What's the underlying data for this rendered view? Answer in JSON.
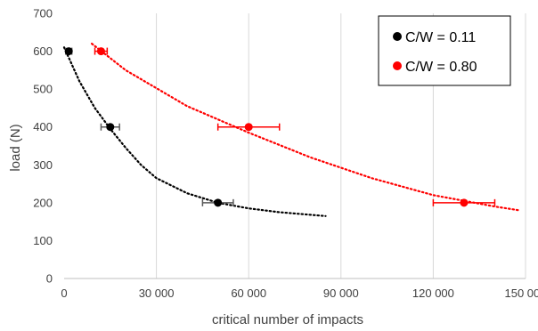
{
  "chart_data": {
    "type": "scatter",
    "title": "",
    "xlabel": "critical number of impacts",
    "ylabel": "load (N)",
    "xlim": [
      0,
      150000
    ],
    "ylim": [
      0,
      700
    ],
    "x_ticks": [
      0,
      30000,
      60000,
      90000,
      120000,
      150000
    ],
    "x_tick_labels": [
      "0",
      "30 000",
      "60 000",
      "90 000",
      "120 000",
      "150 000"
    ],
    "y_ticks": [
      0,
      100,
      200,
      300,
      400,
      500,
      600,
      700
    ],
    "y_tick_labels": [
      "0",
      "100",
      "200",
      "300",
      "400",
      "500",
      "600",
      "700"
    ],
    "grid": "vertical",
    "legend_position": "top-right",
    "series": [
      {
        "name": "C/W = 0.11",
        "color": "#000000",
        "points": [
          {
            "x": 1500,
            "y": 600,
            "xerr": 1000
          },
          {
            "x": 15000,
            "y": 400,
            "xerr": 3000
          },
          {
            "x": 50000,
            "y": 200,
            "xerr": 5000
          }
        ],
        "trendline": {
          "style": "dotted",
          "x": [
            0,
            5000,
            10000,
            15000,
            20000,
            25000,
            30000,
            40000,
            50000,
            60000,
            70000,
            85000
          ],
          "y": [
            610,
            520,
            450,
            395,
            345,
            300,
            265,
            225,
            200,
            185,
            175,
            165
          ]
        }
      },
      {
        "name": "C/W = 0.80",
        "color": "#ff0000",
        "points": [
          {
            "x": 12000,
            "y": 600,
            "xerr": 2000
          },
          {
            "x": 60000,
            "y": 400,
            "xerr": 10000
          },
          {
            "x": 130000,
            "y": 200,
            "xerr": 10000
          }
        ],
        "trendline": {
          "style": "dotted",
          "x": [
            9000,
            20000,
            40000,
            60000,
            80000,
            100000,
            120000,
            140000,
            148000
          ],
          "y": [
            620,
            550,
            455,
            385,
            320,
            265,
            220,
            190,
            180
          ]
        }
      }
    ]
  }
}
